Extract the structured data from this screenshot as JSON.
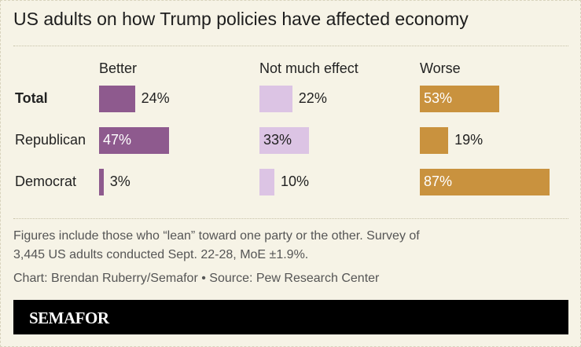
{
  "chart_data": {
    "type": "bar",
    "title": "US adults on how Trump policies have affected economy",
    "categories": [
      "Total",
      "Republican",
      "Democrat"
    ],
    "series": [
      {
        "name": "Better",
        "color": "#8e5a8e",
        "values": [
          24,
          47,
          3
        ],
        "value_labels": [
          "24%",
          "47%",
          "3%"
        ]
      },
      {
        "name": "Not much effect",
        "color": "#dcc4e4",
        "values": [
          22,
          33,
          10
        ],
        "value_labels": [
          "22%",
          "33%",
          "10%"
        ]
      },
      {
        "name": "Worse",
        "color": "#c9923e",
        "values": [
          53,
          19,
          87
        ],
        "value_labels": [
          "53%",
          "19%",
          "87%"
        ]
      }
    ],
    "footnote": "Figures include those who “lean” toward one party or the other. Survey of 3,445 US adults conducted Sept. 22-28, MoE ±1.9%.",
    "credit": "Chart: Brendan Ruberry/Semafor • Source: Pew Research Center",
    "logo": "SEMAFOR"
  }
}
